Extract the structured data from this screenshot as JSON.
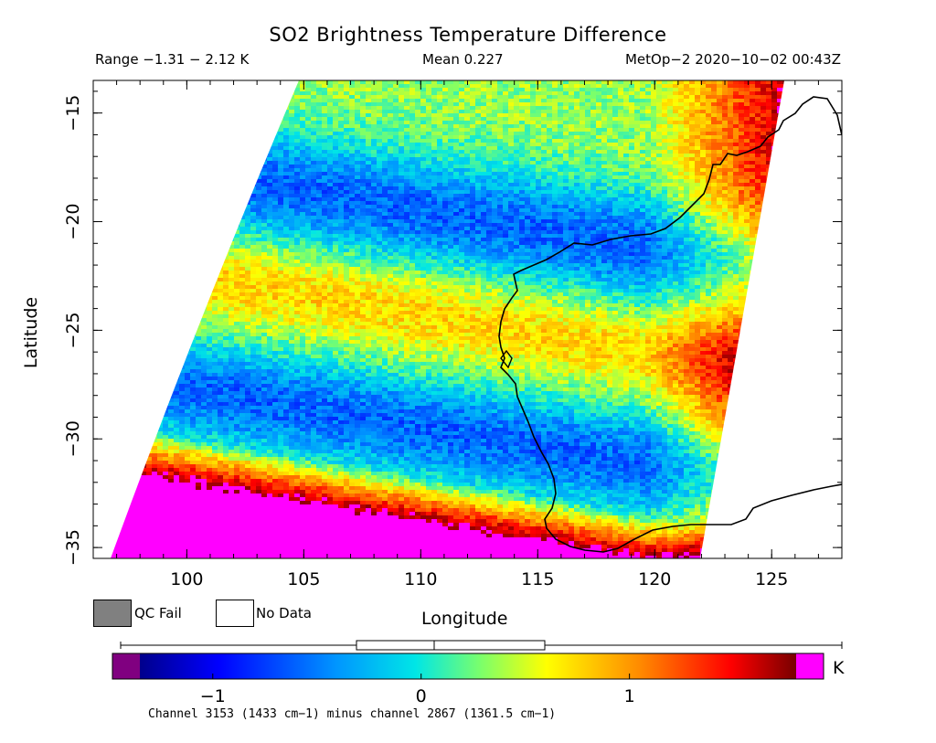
{
  "title": "SO2 Brightness Temperature Difference",
  "header": {
    "range": "Range −1.31 − 2.12 K",
    "mean": "Mean 0.227",
    "satellite": "MetOp−2 2020−10−02 00:43Z"
  },
  "axes": {
    "xlabel": "Longitude",
    "ylabel": "Latitude",
    "xticks": [
      "100",
      "105",
      "110",
      "115",
      "120",
      "125"
    ],
    "yticks": [
      "−15",
      "−20",
      "−25",
      "−30",
      "−35"
    ]
  },
  "legend": {
    "qc_fail": "QC Fail",
    "no_data": "No Data",
    "qc_color": "#808080"
  },
  "colorbar": {
    "ticks": [
      "−1",
      "0",
      "1"
    ],
    "units": "K",
    "low_color": "#800080",
    "high_color": "#ff00ff",
    "boxplot": {
      "min": -1.31,
      "q1": -0.23,
      "median": 0.13,
      "q3": 0.66,
      "max": 2.12
    }
  },
  "subtitle": "Channel 3153 (1433 cm−1) minus channel 2867 (1361.5 cm−1)",
  "map": {
    "lon_range": [
      96,
      128
    ],
    "lat_range": [
      -35.5,
      -13.5
    ],
    "value_range": [
      -1.35,
      1.8
    ]
  }
}
